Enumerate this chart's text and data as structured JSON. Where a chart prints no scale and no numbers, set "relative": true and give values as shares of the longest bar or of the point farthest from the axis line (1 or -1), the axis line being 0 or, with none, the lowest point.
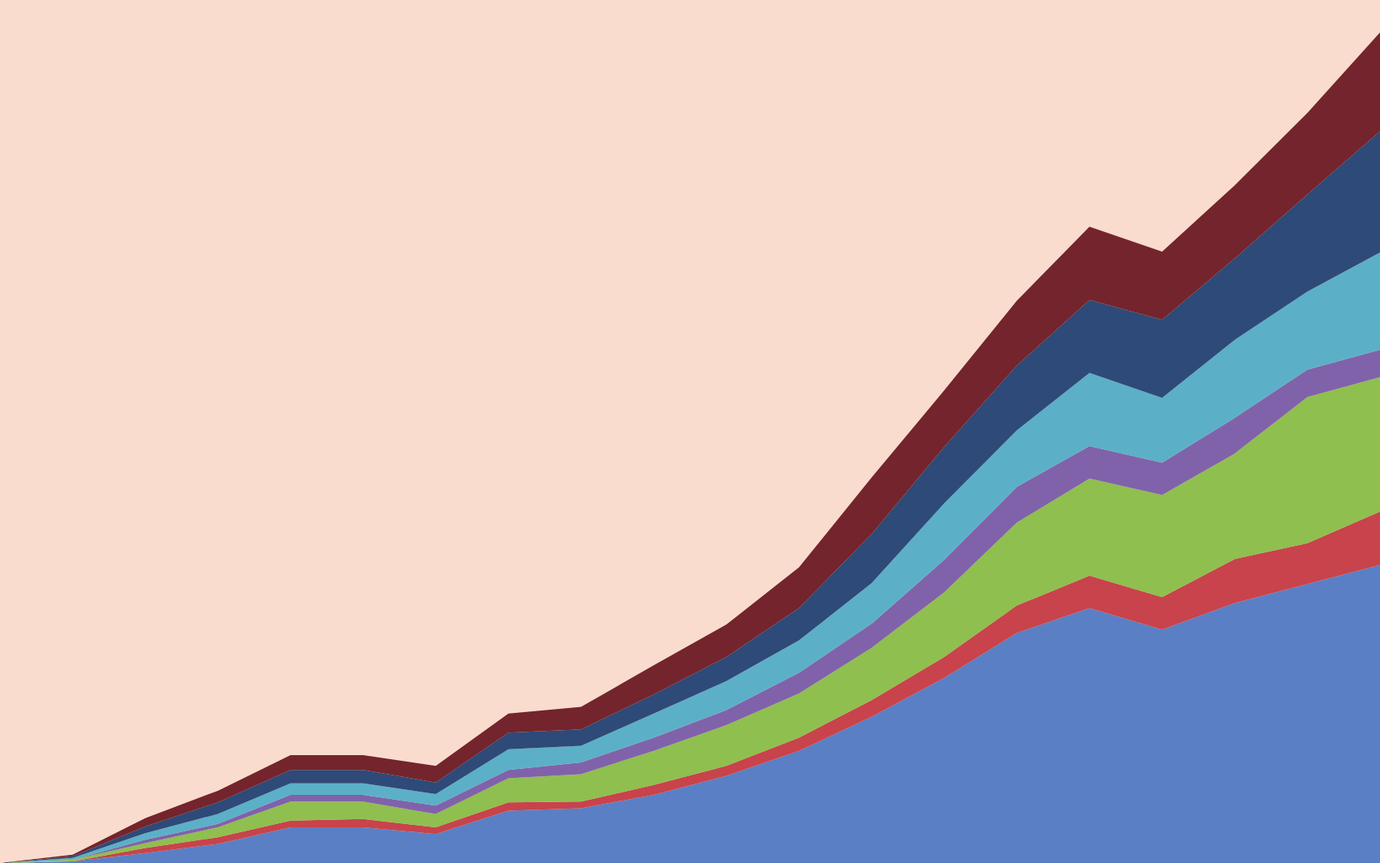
{
  "chart_data": {
    "type": "area",
    "stacked": true,
    "relative": true,
    "categories": [
      null,
      null,
      null,
      null,
      null,
      null,
      null,
      null,
      null,
      null,
      null,
      null,
      null,
      null,
      null,
      null,
      null,
      null,
      null,
      null
    ],
    "series": [
      {
        "color": "#5b7fc4",
        "values": [
          0,
          0.002,
          0.012,
          0.023,
          0.043,
          0.043,
          0.035,
          0.063,
          0.066,
          0.082,
          0.105,
          0.135,
          0.176,
          0.223,
          0.277,
          0.307,
          0.281,
          0.313,
          0.336,
          0.359
        ]
      },
      {
        "color": "#c8434b",
        "values": [
          0,
          0,
          0.006,
          0.008,
          0.008,
          0.01,
          0.008,
          0.01,
          0.008,
          0.012,
          0.012,
          0.016,
          0.02,
          0.025,
          0.033,
          0.039,
          0.039,
          0.053,
          0.049,
          0.064
        ]
      },
      {
        "color": "#8fbf4f",
        "values": [
          0,
          0.002,
          0.006,
          0.012,
          0.023,
          0.021,
          0.016,
          0.029,
          0.033,
          0.041,
          0.049,
          0.053,
          0.063,
          0.078,
          0.1,
          0.117,
          0.123,
          0.127,
          0.176,
          0.162
        ]
      },
      {
        "color": "#8062aa",
        "values": [
          0,
          0,
          0.004,
          0.004,
          0.008,
          0.008,
          0.01,
          0.01,
          0.014,
          0.016,
          0.018,
          0.025,
          0.029,
          0.039,
          0.043,
          0.039,
          0.039,
          0.043,
          0.033,
          0.033
        ]
      },
      {
        "color": "#5bb0c8",
        "values": [
          0,
          0.002,
          0.008,
          0.012,
          0.014,
          0.014,
          0.014,
          0.025,
          0.02,
          0.029,
          0.035,
          0.039,
          0.049,
          0.068,
          0.068,
          0.088,
          0.078,
          0.094,
          0.094,
          0.117
        ]
      },
      {
        "color": "#2e4a78",
        "values": [
          0,
          0.002,
          0.008,
          0.014,
          0.016,
          0.016,
          0.014,
          0.02,
          0.02,
          0.023,
          0.029,
          0.039,
          0.059,
          0.068,
          0.078,
          0.088,
          0.094,
          0.098,
          0.117,
          0.146
        ]
      },
      {
        "color": "#74242c",
        "values": [
          0,
          0.002,
          0.01,
          0.014,
          0.018,
          0.018,
          0.02,
          0.023,
          0.027,
          0.035,
          0.039,
          0.049,
          0.068,
          0.068,
          0.078,
          0.088,
          0.082,
          0.088,
          0.098,
          0.119
        ]
      }
    ]
  }
}
